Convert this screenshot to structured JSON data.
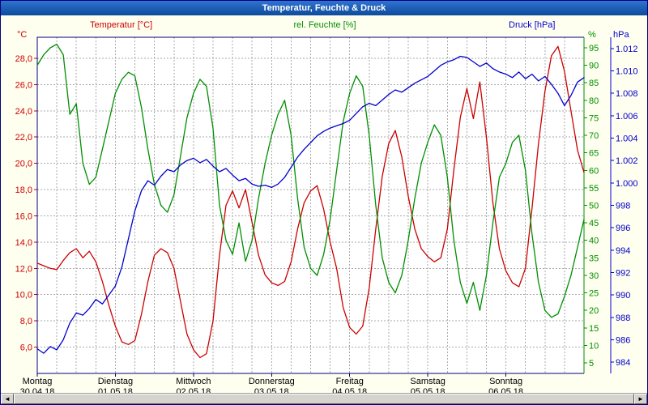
{
  "window": {
    "title": "Temperatur, Feuchte & Druck",
    "background": "#fffff0",
    "titlebar_gradient": [
      "#2f74d0",
      "#0d4a9b"
    ],
    "border_color": "#000080"
  },
  "header": {
    "temperature_label": "Temperatur [°C]",
    "humidity_label": "rel. Feuchte [%]",
    "pressure_label": "Druck [hPa]"
  },
  "scrollbar": {
    "left_arrow": "◄",
    "right_arrow": "►"
  },
  "chart_data": {
    "type": "line",
    "title": "Temperatur, Feuchte & Druck",
    "grid_color": "#aaaaaa",
    "plot_border_color": "#000080",
    "x_axis": {
      "unit": "hours",
      "range_hours": [
        0,
        168
      ],
      "minor_grid_hours": 6,
      "day_label_color": "#000000",
      "days": [
        {
          "name": "Montag",
          "date": "30.04.18"
        },
        {
          "name": "Dienstag",
          "date": "01.05.18"
        },
        {
          "name": "Mittwoch",
          "date": "02.05.18"
        },
        {
          "name": "Donnerstag",
          "date": "03.05.18"
        },
        {
          "name": "Freitag",
          "date": "04.05.18"
        },
        {
          "name": "Samstag",
          "date": "05.05.18"
        },
        {
          "name": "Sonntag",
          "date": "06.05.18"
        }
      ]
    },
    "y_axes": {
      "temperature": {
        "label": "Temperatur [°C]",
        "unit": "°C",
        "color": "#cc0000",
        "min": 4.0,
        "max": 29.6,
        "ticks": [
          6,
          8,
          10,
          12,
          14,
          16,
          18,
          20,
          22,
          24,
          26,
          28
        ],
        "tick_labels": [
          "6,0",
          "8,0",
          "10,0",
          "12,0",
          "14,0",
          "16,0",
          "18,0",
          "20,0",
          "22,0",
          "24,0",
          "26,0",
          "28,0"
        ],
        "side": "left"
      },
      "humidity": {
        "label": "rel. Feuchte [%]",
        "unit": "%",
        "color": "#008f00",
        "min": 2,
        "max": 98,
        "ticks": [
          5,
          10,
          15,
          20,
          25,
          30,
          35,
          40,
          45,
          50,
          55,
          60,
          65,
          70,
          75,
          80,
          85,
          90,
          95
        ],
        "tick_labels": [
          "5",
          "10",
          "15",
          "20",
          "25",
          "30",
          "35",
          "40",
          "45",
          "50",
          "55",
          "60",
          "65",
          "70",
          "75",
          "80",
          "85",
          "90",
          "95"
        ],
        "side": "right-inner"
      },
      "pressure": {
        "label": "Druck [hPa]",
        "unit": "hPa",
        "color": "#0000cc",
        "min": 983,
        "max": 1013,
        "ticks": [
          984,
          986,
          988,
          990,
          992,
          994,
          996,
          998,
          1000,
          1002,
          1004,
          1006,
          1008,
          1010,
          1012
        ],
        "tick_labels": [
          "984",
          "986",
          "988",
          "990",
          "992",
          "994",
          "996",
          "998",
          "1.000",
          "1.002",
          "1.004",
          "1.006",
          "1.008",
          "1.010",
          "1.012"
        ],
        "side": "right-outer"
      }
    },
    "series": [
      {
        "name": "Temperatur",
        "axis": "temperature",
        "color": "#cc0000",
        "step_hours": 2,
        "values": [
          12.4,
          12.2,
          12.0,
          11.9,
          12.6,
          13.2,
          13.5,
          12.8,
          13.3,
          12.5,
          11.0,
          9.2,
          7.6,
          6.4,
          6.2,
          6.5,
          8.5,
          11.0,
          13.0,
          13.5,
          13.2,
          12.0,
          9.5,
          7.0,
          5.8,
          5.2,
          5.5,
          8.0,
          13.0,
          16.8,
          17.9,
          16.6,
          18.0,
          15.5,
          13.0,
          11.5,
          10.9,
          10.7,
          11.0,
          12.5,
          15.0,
          17.0,
          17.9,
          18.3,
          16.5,
          14.0,
          12.0,
          9.0,
          7.5,
          7.0,
          7.6,
          10.5,
          15.0,
          19.0,
          21.5,
          22.5,
          20.5,
          17.5,
          15.0,
          13.5,
          12.9,
          12.5,
          12.8,
          15.0,
          19.5,
          23.5,
          25.7,
          23.4,
          26.2,
          22.0,
          17.0,
          13.5,
          11.8,
          10.9,
          10.6,
          12.0,
          16.5,
          21.5,
          25.5,
          28.2,
          28.9,
          27.0,
          24.0,
          21.0,
          19.3
        ]
      },
      {
        "name": "rel. Feuchte",
        "axis": "humidity",
        "color": "#008f00",
        "step_hours": 2,
        "values": [
          90,
          93,
          95,
          96,
          93,
          76,
          79,
          62,
          56,
          58,
          66,
          74,
          82,
          86,
          88,
          87,
          78,
          66,
          56,
          50,
          48,
          53,
          64,
          75,
          82,
          86,
          84,
          72,
          50,
          40,
          36,
          45,
          34,
          40,
          52,
          62,
          70,
          76,
          80,
          70,
          52,
          38,
          32,
          30,
          36,
          46,
          60,
          74,
          82,
          87,
          84,
          70,
          50,
          35,
          28,
          25,
          30,
          40,
          52,
          62,
          68,
          73,
          70,
          58,
          40,
          28,
          22,
          28,
          20,
          30,
          45,
          58,
          62,
          68,
          70,
          60,
          42,
          28,
          20,
          18,
          19,
          24,
          30,
          38,
          46
        ]
      },
      {
        "name": "Druck",
        "axis": "pressure",
        "color": "#0000cc",
        "step_hours": 2,
        "values": [
          985.2,
          984.8,
          985.4,
          985.1,
          986.0,
          987.5,
          988.4,
          988.2,
          988.8,
          989.6,
          989.2,
          990.0,
          990.8,
          992.5,
          995.0,
          997.5,
          999.3,
          1000.2,
          999.8,
          1000.6,
          1001.2,
          1001.0,
          1001.6,
          1002.0,
          1002.2,
          1001.8,
          1002.1,
          1001.5,
          1001.0,
          1001.3,
          1000.7,
          1000.2,
          1000.4,
          999.9,
          999.7,
          999.8,
          999.6,
          999.9,
          1000.5,
          1001.4,
          1002.3,
          1003.0,
          1003.6,
          1004.2,
          1004.6,
          1004.9,
          1005.1,
          1005.3,
          1005.6,
          1006.2,
          1006.8,
          1007.1,
          1006.9,
          1007.4,
          1007.9,
          1008.3,
          1008.1,
          1008.5,
          1008.9,
          1009.2,
          1009.5,
          1010.0,
          1010.5,
          1010.8,
          1011.0,
          1011.3,
          1011.2,
          1010.8,
          1010.4,
          1010.7,
          1010.2,
          1009.9,
          1009.7,
          1009.4,
          1009.9,
          1009.3,
          1009.7,
          1009.1,
          1009.5,
          1008.8,
          1008.0,
          1006.9,
          1007.8,
          1009.0,
          1009.4
        ]
      }
    ]
  }
}
